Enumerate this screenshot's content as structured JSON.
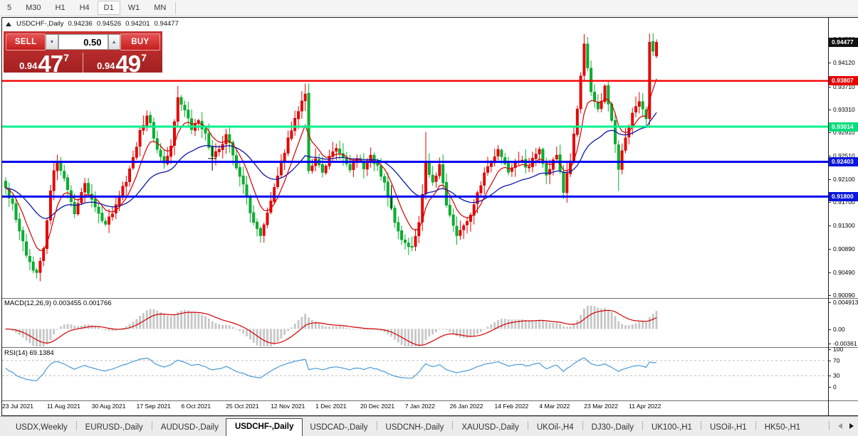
{
  "toolbar": {
    "timeframes": [
      "5",
      "M30",
      "H1",
      "H4",
      "D1",
      "W1",
      "MN"
    ],
    "active_timeframe": "D1"
  },
  "chart_window": {
    "title": {
      "symbol": "USDCHF-,Daily",
      "open": "0.94236",
      "high": "0.94526",
      "low": "0.94201",
      "close": "0.94477"
    },
    "trade_panel": {
      "sell_label": "SELL",
      "buy_label": "BUY",
      "volume_value": "0.50",
      "sell_price": {
        "prefix": "0.94",
        "big": "47",
        "sup": "7"
      },
      "buy_price": {
        "prefix": "0.94",
        "big": "49",
        "sup": "7"
      }
    },
    "price_axis": {
      "labels": [
        "0.94530",
        "0.94120",
        "0.93710",
        "0.93310",
        "0.92910",
        "0.92510",
        "0.92100",
        "0.91700",
        "0.91300",
        "0.90890",
        "0.90490",
        "0.90090"
      ],
      "badges": [
        {
          "text": "0.94477",
          "price": 0.94477,
          "color": "#111111"
        },
        {
          "text": "0.93807",
          "price": 0.93807,
          "color": "#e60000"
        },
        {
          "text": "0.93014",
          "price": 0.93014,
          "color": "#00dd7a"
        },
        {
          "text": "0.92403",
          "price": 0.92403,
          "color": "#0a16dd"
        },
        {
          "text": "0.91800",
          "price": 0.918,
          "color": "#0a16dd"
        }
      ]
    },
    "time_axis": {
      "labels": [
        "23 Jul 2021",
        "11 Aug 2021",
        "30 Aug 2021",
        "17 Sep 2021",
        "6 Oct 2021",
        "25 Oct 2021",
        "12 Nov 2021",
        "1 Dec 2021",
        "20 Dec 2021",
        "7 Jan 2022",
        "26 Jan 2022",
        "14 Feb 2022",
        "4 Mar 2022",
        "23 Mar 2022",
        "11 Apr 2022"
      ]
    },
    "macd_pane": {
      "label": "MACD(12,26,9) 0.003455 0.001766",
      "axis_labels": [
        "0.004913",
        "0.00",
        "-0.00361"
      ]
    },
    "rsi_pane": {
      "label": "RSI(14) 69.1384",
      "axis_labels": [
        "100",
        "70",
        "30",
        "0"
      ]
    }
  },
  "tab_bar": {
    "tabs": [
      "USDX,Weekly",
      "EURUSD-,Daily",
      "AUDUSD-,Daily",
      "USDCHF-,Daily",
      "USDCAD-,Daily",
      "USDCNH-,Daily",
      "XAUUSD-,Daily",
      "UKOil-,H4",
      "DJ30-,Daily",
      "UK100-,H1",
      "USOil-,H1",
      "HK50-,H1"
    ],
    "active_tab": "USDCHF-,Daily"
  },
  "chart_data": {
    "type": "candlestick",
    "symbol": "USDCHF",
    "timeframe": "Daily",
    "candle_count": 190,
    "seed": 1337,
    "ylim": [
      0.9004,
      0.9468
    ],
    "last_ohlc": {
      "open": 0.94236,
      "high": 0.94526,
      "low": 0.94201,
      "close": 0.94477
    },
    "horizontal_levels": [
      {
        "price": 0.93807,
        "color": "#f40000",
        "width": 2.4
      },
      {
        "price": 0.93014,
        "color": "#00f28b",
        "width": 3
      },
      {
        "price": 0.92403,
        "color": "#0000f0",
        "width": 3
      },
      {
        "price": 0.918,
        "color": "#0000f0",
        "width": 3
      }
    ],
    "colors": {
      "bull": "#ee0000",
      "bull_edge": "#bf0000",
      "bear": "#00b42c",
      "bear_edge": "#008f1f",
      "ma_fast": "#d40000",
      "ma_slow": "#0d17a8",
      "macd_hist": "#c6c6c6",
      "macd_signal": "#d40000",
      "rsi_line": "#4a9ad8",
      "dashed_level": "#bdbdbd"
    },
    "indicators": {
      "macd": {
        "params": [
          12,
          26,
          9
        ],
        "current_macd": 0.003455,
        "current_signal": 0.001766,
        "axis_max": 0.004913,
        "axis_min": -0.00361
      },
      "rsi": {
        "period": 14,
        "current": 69.1384,
        "levels": [
          70,
          30
        ]
      },
      "ma_fast_period": 8,
      "ma_slow_period": 30
    },
    "price_waypoints": [
      [
        0,
        0.9195
      ],
      [
        2,
        0.9168
      ],
      [
        4,
        0.912
      ],
      [
        6,
        0.9078
      ],
      [
        8,
        0.9052
      ],
      [
        9,
        0.9048
      ],
      [
        11,
        0.909
      ],
      [
        13,
        0.919
      ],
      [
        14,
        0.9225
      ],
      [
        15,
        0.9238
      ],
      [
        17,
        0.9212
      ],
      [
        20,
        0.915
      ],
      [
        23,
        0.9203
      ],
      [
        26,
        0.9162
      ],
      [
        29,
        0.9132
      ],
      [
        31,
        0.915
      ],
      [
        33,
        0.918
      ],
      [
        35,
        0.9205
      ],
      [
        37,
        0.9248
      ],
      [
        39,
        0.9295
      ],
      [
        41,
        0.932
      ],
      [
        42,
        0.9308
      ],
      [
        44,
        0.9262
      ],
      [
        46,
        0.9238
      ],
      [
        48,
        0.9268
      ],
      [
        49,
        0.931
      ],
      [
        50,
        0.9352
      ],
      [
        52,
        0.933
      ],
      [
        54,
        0.9296
      ],
      [
        56,
        0.9312
      ],
      [
        58,
        0.929
      ],
      [
        60,
        0.925
      ],
      [
        62,
        0.9262
      ],
      [
        64,
        0.9288
      ],
      [
        66,
        0.9252
      ],
      [
        68,
        0.9215
      ],
      [
        70,
        0.918
      ],
      [
        72,
        0.9135
      ],
      [
        74,
        0.9112
      ],
      [
        76,
        0.9152
      ],
      [
        78,
        0.9196
      ],
      [
        80,
        0.9242
      ],
      [
        82,
        0.9282
      ],
      [
        84,
        0.9316
      ],
      [
        86,
        0.9346
      ],
      [
        87,
        0.9358
      ],
      [
        88,
        0.9225
      ],
      [
        90,
        0.9246
      ],
      [
        92,
        0.9222
      ],
      [
        94,
        0.925
      ],
      [
        96,
        0.9264
      ],
      [
        98,
        0.9248
      ],
      [
        100,
        0.9226
      ],
      [
        102,
        0.9246
      ],
      [
        104,
        0.9228
      ],
      [
        106,
        0.9252
      ],
      [
        108,
        0.9234
      ],
      [
        110,
        0.9205
      ],
      [
        112,
        0.916
      ],
      [
        114,
        0.912
      ],
      [
        116,
        0.91
      ],
      [
        118,
        0.9092
      ],
      [
        120,
        0.9135
      ],
      [
        122,
        0.924
      ],
      [
        124,
        0.9205
      ],
      [
        126,
        0.9236
      ],
      [
        128,
        0.9165
      ],
      [
        131,
        0.9112
      ],
      [
        134,
        0.9137
      ],
      [
        137,
        0.9187
      ],
      [
        140,
        0.9232
      ],
      [
        143,
        0.9262
      ],
      [
        146,
        0.9222
      ],
      [
        149,
        0.9242
      ],
      [
        152,
        0.9232
      ],
      [
        155,
        0.9262
      ],
      [
        157,
        0.9217
      ],
      [
        160,
        0.9252
      ],
      [
        162,
        0.9187
      ],
      [
        164,
        0.9242
      ],
      [
        166,
        0.9332
      ],
      [
        168,
        0.9445
      ],
      [
        170,
        0.9362
      ],
      [
        172,
        0.9332
      ],
      [
        174,
        0.9372
      ],
      [
        176,
        0.9312
      ],
      [
        178,
        0.9227
      ],
      [
        180,
        0.9282
      ],
      [
        182,
        0.9325
      ],
      [
        184,
        0.9345
      ],
      [
        185,
        0.9332
      ],
      [
        186,
        0.9315
      ],
      [
        187,
        0.9448
      ],
      [
        188,
        0.9432
      ],
      [
        189,
        0.94477
      ]
    ],
    "wick_highs": {
      "15": 0.9243,
      "50": 0.9372,
      "87": 0.9376,
      "122": 0.9292,
      "168": 0.9462,
      "188": 0.9452
    },
    "wick_lows": {
      "9": 0.9045,
      "74": 0.91,
      "118": 0.9085,
      "131": 0.9105,
      "178": 0.919,
      "187": 0.9302
    },
    "markers": [
      {
        "idx": 60,
        "price": 0.9246
      },
      {
        "idx": 112,
        "price": 0.9179
      }
    ]
  }
}
